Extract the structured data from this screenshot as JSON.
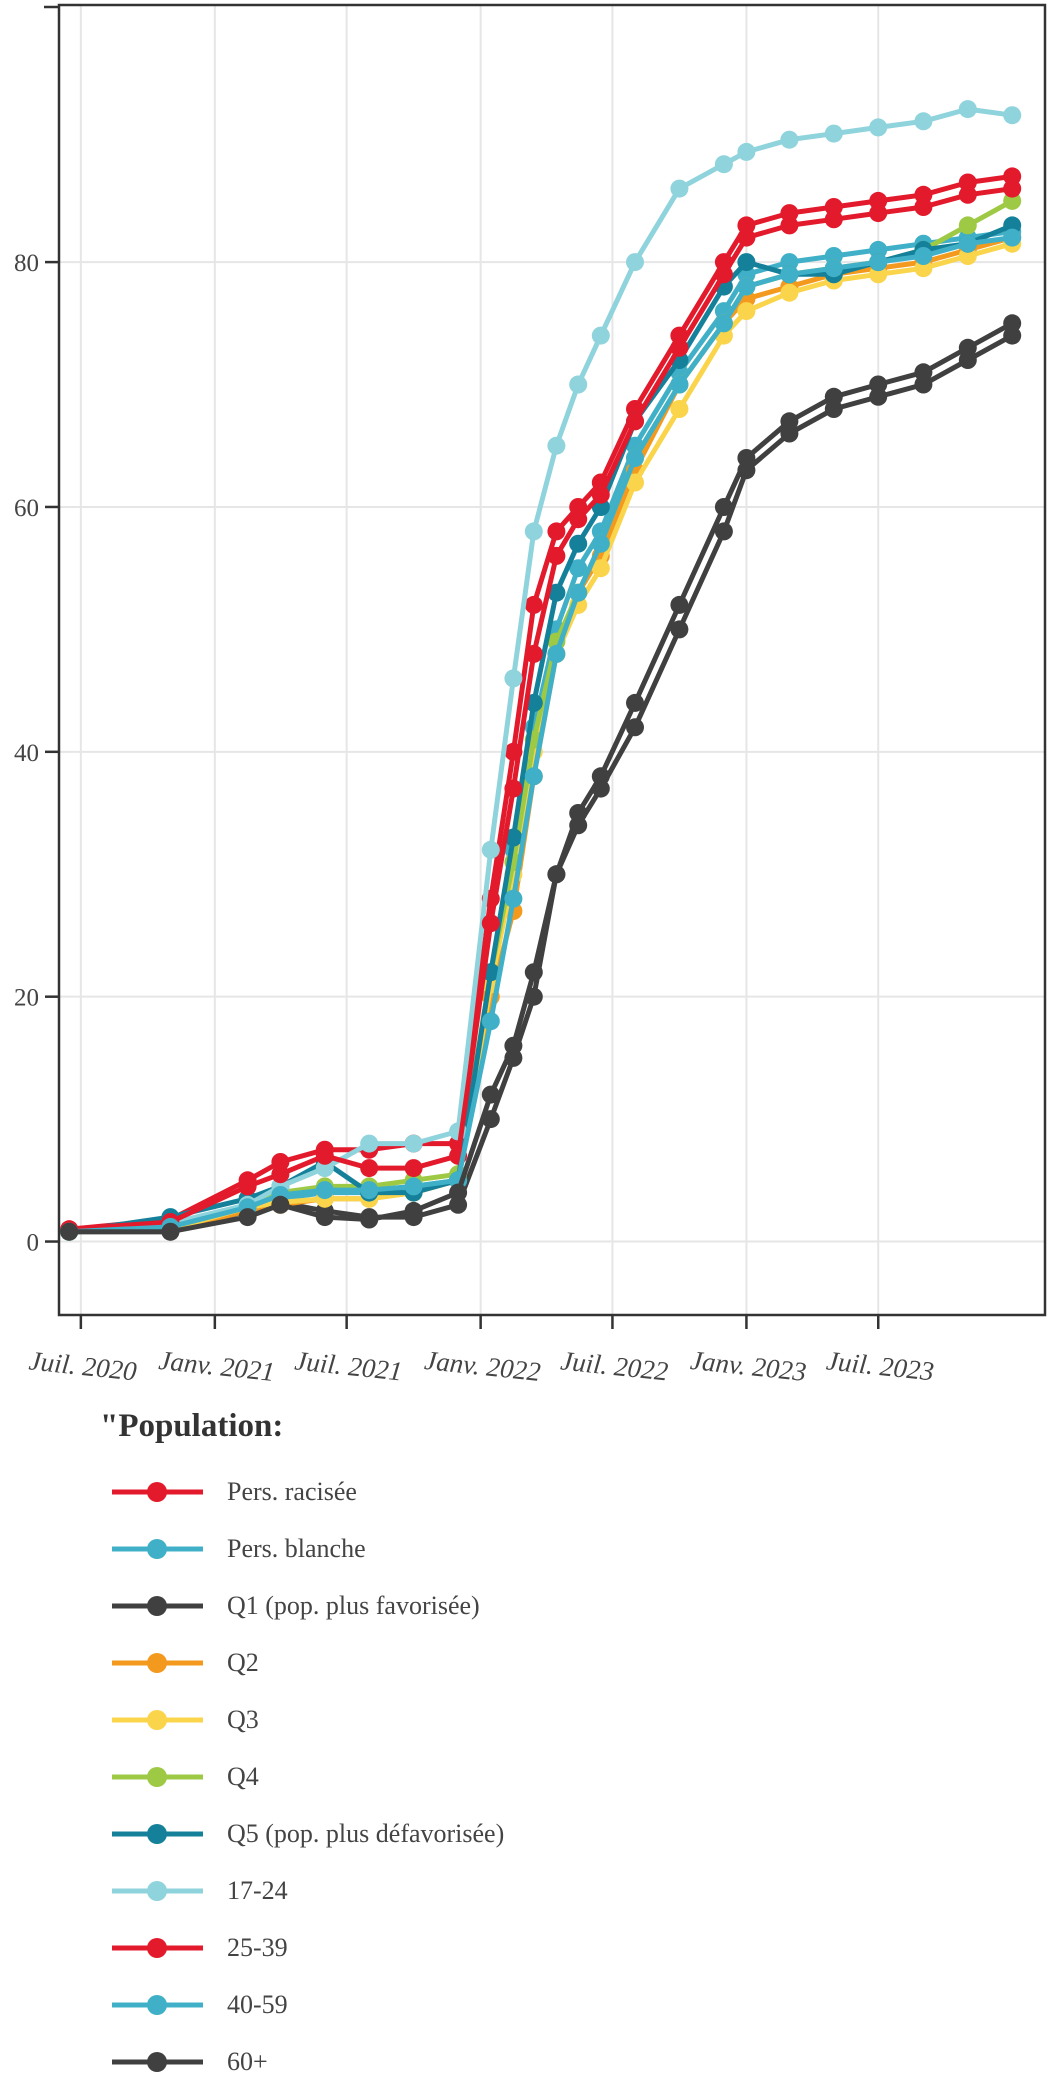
{
  "chart_data": {
    "type": "line",
    "title": "",
    "xlabel": "",
    "ylabel": "",
    "ylim": [
      -6,
      101
    ],
    "yticks": [
      0,
      20,
      40,
      60,
      80
    ],
    "ytick_labels": [
      "0",
      "20",
      "40",
      "60",
      "80"
    ],
    "xlim": [
      "2020-06-01",
      "2024-02-15"
    ],
    "xticks": [
      "2020-07-01",
      "2021-01-01",
      "2021-07-01",
      "2022-01-01",
      "2022-07-01",
      "2023-01-01",
      "2023-07-01"
    ],
    "xtick_labels": [
      "Juil. 2020",
      "Janv. 2021",
      "Juil. 2021",
      "Janv. 2022",
      "Juil. 2022",
      "Janv. 2023",
      "Juil. 2023"
    ],
    "grid": true,
    "legend_title": "\"Population:",
    "legend_position": "bottom",
    "series": [
      {
        "name": "Pers. racisée",
        "color": "#e31a2c",
        "x": [
          "2020-06-15",
          "2020-11-01",
          "2021-02-15",
          "2021-04-01",
          "2021-06-01",
          "2021-08-01",
          "2021-10-01",
          "2021-12-01",
          "2022-01-15",
          "2022-02-15",
          "2022-03-15",
          "2022-04-15",
          "2022-05-15",
          "2022-06-15",
          "2022-08-01",
          "2022-10-01",
          "2022-12-01",
          "2023-01-01",
          "2023-03-01",
          "2023-05-01",
          "2023-07-01",
          "2023-09-01",
          "2023-11-01",
          "2024-01-01"
        ],
        "values": [
          1,
          1.8,
          5,
          6.5,
          7.5,
          7.5,
          8,
          8,
          28,
          40,
          52,
          58,
          60,
          62,
          68,
          74,
          80,
          83,
          84,
          84.5,
          85,
          85.5,
          86.5,
          87
        ]
      },
      {
        "name": "Pers. blanche",
        "color": "#40b0c8",
        "x": [
          "2020-06-15",
          "2020-11-01",
          "2021-02-15",
          "2021-04-01",
          "2021-06-01",
          "2021-08-01",
          "2021-10-01",
          "2021-12-01",
          "2022-01-15",
          "2022-02-15",
          "2022-03-15",
          "2022-04-15",
          "2022-05-15",
          "2022-06-15",
          "2022-08-01",
          "2022-10-01",
          "2022-12-01",
          "2023-01-01",
          "2023-03-01",
          "2023-05-01",
          "2023-07-01",
          "2023-09-01",
          "2023-11-01",
          "2024-01-01"
        ],
        "values": [
          0.8,
          1.2,
          2.5,
          3.5,
          4,
          4,
          4.5,
          5,
          22,
          32,
          42,
          50,
          55,
          58,
          65,
          71,
          76,
          79,
          80,
          80.5,
          81,
          81.5,
          82,
          82.5
        ]
      },
      {
        "name": "Q1 (pop. plus favorisée)",
        "color": "#404040",
        "x": [
          "2020-06-15",
          "2020-11-01",
          "2021-02-15",
          "2021-04-01",
          "2021-06-01",
          "2021-08-01",
          "2021-10-01",
          "2021-12-01",
          "2022-01-15",
          "2022-02-15",
          "2022-03-15",
          "2022-04-15",
          "2022-05-15",
          "2022-06-15",
          "2022-08-01",
          "2022-10-01",
          "2022-12-01",
          "2023-01-01",
          "2023-03-01",
          "2023-05-01",
          "2023-07-01",
          "2023-09-01",
          "2023-11-01",
          "2024-01-01"
        ],
        "values": [
          0.8,
          0.8,
          2.5,
          3.2,
          2.5,
          2,
          2,
          3,
          10,
          15,
          20,
          30,
          35,
          38,
          44,
          52,
          60,
          64,
          67,
          69,
          70,
          71,
          73,
          75
        ]
      },
      {
        "name": "Q2",
        "color": "#f39a1e",
        "x": [
          "2020-06-15",
          "2020-11-01",
          "2021-02-15",
          "2021-04-01",
          "2021-06-01",
          "2021-08-01",
          "2021-10-01",
          "2021-12-01",
          "2022-01-15",
          "2022-02-15",
          "2022-03-15",
          "2022-04-15",
          "2022-05-15",
          "2022-06-15",
          "2022-08-01",
          "2022-10-01",
          "2022-12-01",
          "2023-01-01",
          "2023-03-01",
          "2023-05-01",
          "2023-07-01",
          "2023-09-01",
          "2023-11-01",
          "2024-01-01"
        ],
        "values": [
          0.8,
          1,
          2.5,
          3,
          3.5,
          3.5,
          4,
          5,
          20,
          27,
          38,
          48,
          53,
          56,
          63,
          70,
          75,
          77,
          78,
          79,
          79.5,
          80,
          81,
          82
        ]
      },
      {
        "name": "Q3",
        "color": "#fad44b",
        "x": [
          "2020-06-15",
          "2020-11-01",
          "2021-02-15",
          "2021-04-01",
          "2021-06-01",
          "2021-08-01",
          "2021-10-01",
          "2021-12-01",
          "2022-01-15",
          "2022-02-15",
          "2022-03-15",
          "2022-04-15",
          "2022-05-15",
          "2022-06-15",
          "2022-08-01",
          "2022-10-01",
          "2022-12-01",
          "2023-01-01",
          "2023-03-01",
          "2023-05-01",
          "2023-07-01",
          "2023-09-01",
          "2023-11-01",
          "2024-01-01"
        ],
        "values": [
          0.8,
          1,
          2.8,
          3.2,
          3.5,
          3.5,
          4,
          5,
          21,
          30,
          40,
          48,
          52,
          55,
          62,
          68,
          74,
          76,
          77.5,
          78.5,
          79,
          79.5,
          80.5,
          81.5
        ]
      },
      {
        "name": "Q4",
        "color": "#9ec945",
        "x": [
          "2020-06-15",
          "2020-11-01",
          "2021-02-15",
          "2021-04-01",
          "2021-06-01",
          "2021-08-01",
          "2021-10-01",
          "2021-12-01",
          "2022-01-15",
          "2022-02-15",
          "2022-03-15",
          "2022-04-15",
          "2022-05-15",
          "2022-06-15",
          "2022-08-01",
          "2022-10-01",
          "2022-12-01",
          "2023-01-01",
          "2023-03-01",
          "2023-05-01",
          "2023-07-01",
          "2023-09-01",
          "2023-11-01",
          "2024-01-01"
        ],
        "values": [
          0.8,
          1.2,
          3,
          4,
          4.5,
          4.5,
          5,
          5.5,
          22,
          31,
          41,
          49,
          53,
          57,
          64,
          70,
          75,
          78,
          79,
          79.5,
          80,
          81,
          83,
          85
        ]
      },
      {
        "name": "Q5 (pop. plus défavorisée)",
        "color": "#14809a",
        "x": [
          "2020-06-15",
          "2020-11-01",
          "2021-02-15",
          "2021-04-01",
          "2021-06-01",
          "2021-08-01",
          "2021-10-01",
          "2021-12-01",
          "2022-01-15",
          "2022-02-15",
          "2022-03-15",
          "2022-04-15",
          "2022-05-15",
          "2022-06-15",
          "2022-08-01",
          "2022-10-01",
          "2022-12-01",
          "2023-01-01",
          "2023-03-01",
          "2023-05-01",
          "2023-07-01",
          "2023-09-01",
          "2023-11-01",
          "2024-01-01"
        ],
        "values": [
          0.8,
          2,
          3.5,
          4.5,
          6.5,
          4,
          4,
          5,
          22,
          33,
          44,
          53,
          57,
          60,
          67,
          72,
          78,
          80,
          79,
          79,
          80,
          81,
          81.5,
          83
        ]
      },
      {
        "name": "17-24",
        "color": "#8fd3dc",
        "x": [
          "2020-06-15",
          "2020-11-01",
          "2021-02-15",
          "2021-04-01",
          "2021-06-01",
          "2021-08-01",
          "2021-10-01",
          "2021-12-01",
          "2022-01-15",
          "2022-02-15",
          "2022-03-15",
          "2022-04-15",
          "2022-05-15",
          "2022-06-15",
          "2022-08-01",
          "2022-10-01",
          "2022-12-01",
          "2023-01-01",
          "2023-03-01",
          "2023-05-01",
          "2023-07-01",
          "2023-09-01",
          "2023-11-01",
          "2024-01-01"
        ],
        "values": [
          0.8,
          1.5,
          3,
          4.5,
          6,
          8,
          8,
          9,
          32,
          46,
          58,
          65,
          70,
          74,
          80,
          86,
          88,
          89,
          90,
          90.5,
          91,
          91.5,
          92.5,
          92
        ]
      },
      {
        "name": "25-39",
        "color": "#e31a2c",
        "x": [
          "2020-06-15",
          "2020-11-01",
          "2021-02-15",
          "2021-04-01",
          "2021-06-01",
          "2021-08-01",
          "2021-10-01",
          "2021-12-01",
          "2022-01-15",
          "2022-02-15",
          "2022-03-15",
          "2022-04-15",
          "2022-05-15",
          "2022-06-15",
          "2022-08-01",
          "2022-10-01",
          "2022-12-01",
          "2023-01-01",
          "2023-03-01",
          "2023-05-01",
          "2023-07-01",
          "2023-09-01",
          "2023-11-01",
          "2024-01-01"
        ],
        "values": [
          1,
          1.6,
          4.5,
          5.5,
          7,
          6,
          6,
          7,
          26,
          37,
          48,
          56,
          59,
          61,
          67,
          73,
          79,
          82,
          83,
          83.5,
          84,
          84.5,
          85.5,
          86
        ]
      },
      {
        "name": "40-59",
        "color": "#40b0c8",
        "x": [
          "2020-06-15",
          "2020-11-01",
          "2021-02-15",
          "2021-04-01",
          "2021-06-01",
          "2021-08-01",
          "2021-10-01",
          "2021-12-01",
          "2022-01-15",
          "2022-02-15",
          "2022-03-15",
          "2022-04-15",
          "2022-05-15",
          "2022-06-15",
          "2022-08-01",
          "2022-10-01",
          "2022-12-01",
          "2023-01-01",
          "2023-03-01",
          "2023-05-01",
          "2023-07-01",
          "2023-09-01",
          "2023-11-01",
          "2024-01-01"
        ],
        "values": [
          0.8,
          1.2,
          2.8,
          3.8,
          4.2,
          4.2,
          4.5,
          5,
          18,
          28,
          38,
          48,
          53,
          57,
          64,
          70,
          75,
          78,
          79,
          79.5,
          80,
          80.5,
          81.5,
          82
        ]
      },
      {
        "name": "60+",
        "color": "#404040",
        "x": [
          "2020-06-15",
          "2020-11-01",
          "2021-02-15",
          "2021-04-01",
          "2021-06-01",
          "2021-08-01",
          "2021-10-01",
          "2021-12-01",
          "2022-01-15",
          "2022-02-15",
          "2022-03-15",
          "2022-04-15",
          "2022-05-15",
          "2022-06-15",
          "2022-08-01",
          "2022-10-01",
          "2022-12-01",
          "2023-01-01",
          "2023-03-01",
          "2023-05-01",
          "2023-07-01",
          "2023-09-01",
          "2023-11-01",
          "2024-01-01"
        ],
        "values": [
          0.8,
          0.8,
          2,
          3,
          2,
          1.8,
          2.5,
          4,
          12,
          16,
          22,
          30,
          34,
          37,
          42,
          50,
          58,
          63,
          66,
          68,
          69,
          70,
          72,
          74
        ]
      }
    ]
  }
}
